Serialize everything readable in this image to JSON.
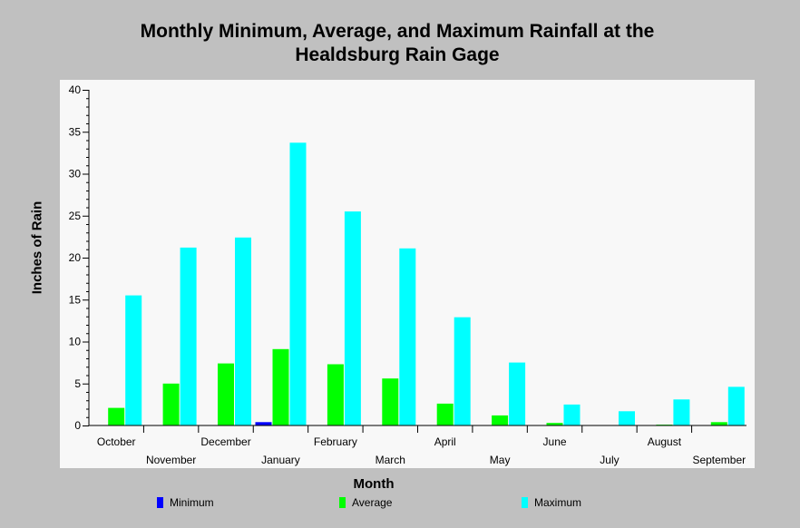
{
  "chart_data": {
    "type": "bar",
    "title_lines": [
      "Monthly Minimum, Average, and Maximum Rainfall at the",
      "Healdsburg Rain Gage"
    ],
    "xlabel": "Month",
    "ylabel": "Inches of Rain",
    "ylim": [
      0,
      40
    ],
    "yticks": [
      "0",
      "5",
      "10",
      "15",
      "20",
      "25",
      "30",
      "35",
      "40"
    ],
    "categories": [
      "October",
      "November",
      "December",
      "January",
      "February",
      "March",
      "April",
      "May",
      "June",
      "July",
      "August",
      "September"
    ],
    "series": [
      {
        "name": "Minimum",
        "color": "#0000ff",
        "values": [
          0,
          0,
          0,
          0.4,
          0,
          0,
          0,
          0,
          0,
          0,
          0,
          0
        ]
      },
      {
        "name": "Average",
        "color": "#00ff00",
        "values": [
          2.1,
          5.0,
          7.4,
          9.1,
          7.3,
          5.6,
          2.6,
          1.2,
          0.3,
          0.05,
          0.1,
          0.4
        ]
      },
      {
        "name": "Maximum",
        "color": "#00ffff",
        "values": [
          15.5,
          21.2,
          22.4,
          33.7,
          25.5,
          21.1,
          12.9,
          7.5,
          2.5,
          1.7,
          3.1,
          4.6
        ]
      }
    ],
    "legend_position": "bottom",
    "grid": false
  }
}
